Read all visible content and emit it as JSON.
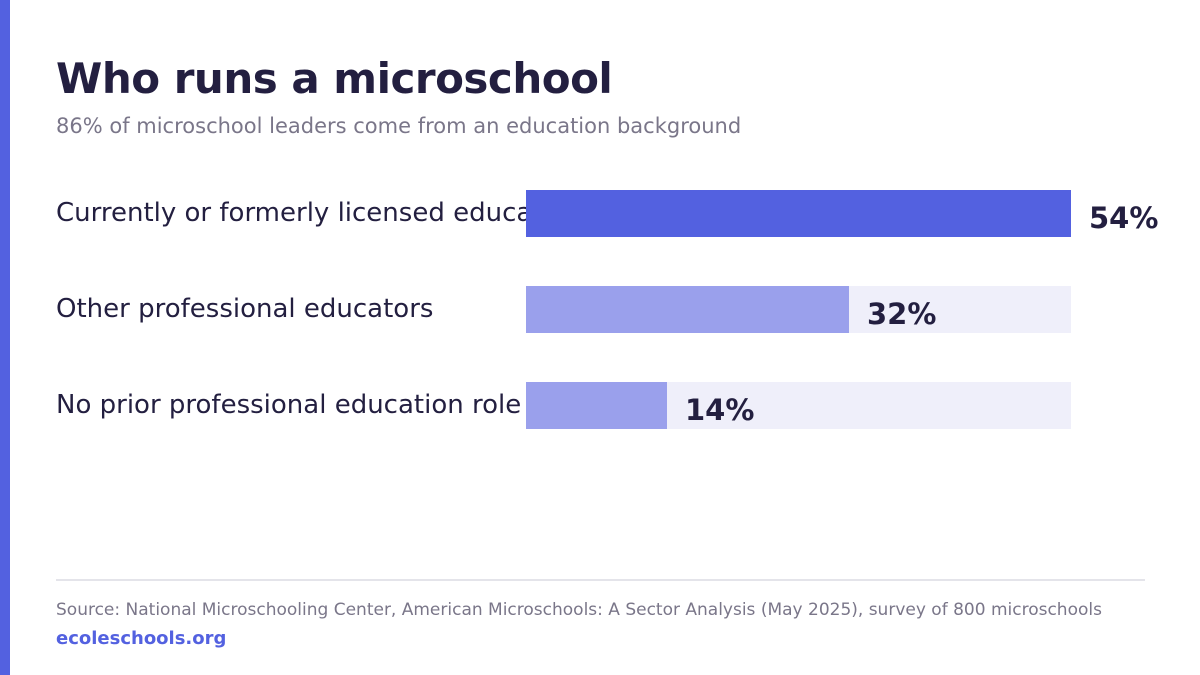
{
  "title": "Who runs a microschool",
  "subtitle": "86% of microschool leaders come from an education background",
  "chart_data": {
    "type": "bar",
    "orientation": "horizontal",
    "title": "Who runs a microschool",
    "subtitle": "86% of microschool leaders come from an education background",
    "categories": [
      "Currently or formerly licensed educators",
      "Other professional educators",
      "No prior professional education role"
    ],
    "values": [
      54,
      32,
      14
    ],
    "value_labels": [
      "54%",
      "32%",
      "14%"
    ],
    "unit": "%",
    "xlim": [
      0,
      54
    ],
    "grid": false,
    "legend": "none",
    "colors": {
      "highlight": "#5361e0",
      "secondary": "#9aa0ec",
      "track": "#efeffa"
    }
  },
  "footer": {
    "source": "Source: National Microschooling Center, American Microschools: A Sector Analysis (May 2025), survey of 800 microschools",
    "brand": "ecoleschools.org"
  }
}
